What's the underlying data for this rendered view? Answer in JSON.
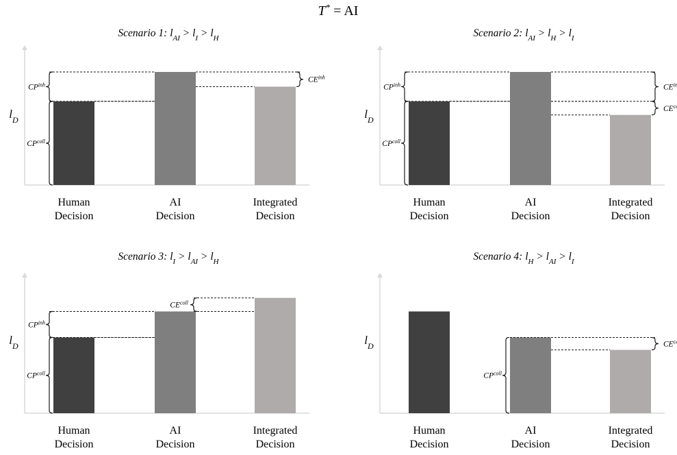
{
  "figure_title": {
    "base": "T",
    "sup": "*",
    "rest": " = AI"
  },
  "colors": {
    "human": "#404040",
    "ai": "#7f7f7f",
    "integrated": "#afabab",
    "axis": "#d9d9d9",
    "line": "#1a1a1a"
  },
  "chart_data": [
    {
      "type": "bar",
      "title_prefix": "Scenario 1: ",
      "title_terms": [
        {
          "b": "l",
          "s": "AI"
        },
        {
          "op": " > "
        },
        {
          "b": "l",
          "s": "I"
        },
        {
          "op": " > "
        },
        {
          "b": "l",
          "s": "H"
        }
      ],
      "ylabel": {
        "b": "l",
        "s": "D"
      },
      "categories": [
        [
          "Human",
          "Decision"
        ],
        [
          "AI",
          "Decision"
        ],
        [
          "Integrated",
          "Decision"
        ]
      ],
      "values": [
        0.74,
        1.0,
        0.87
      ],
      "ylim": [
        0,
        1.25
      ],
      "annotations": [
        {
          "kind": "left-brace",
          "from": 0,
          "to": 0.74,
          "label": "CP",
          "sup": "coll"
        },
        {
          "kind": "left-brace",
          "from": 0.74,
          "to": 1.0,
          "label": "CP",
          "sup": "inh"
        },
        {
          "kind": "right-brace",
          "from": 0.87,
          "to": 1.0,
          "label": "CE",
          "sup": "inh"
        }
      ]
    },
    {
      "type": "bar",
      "title_prefix": "Scenario 2: ",
      "title_terms": [
        {
          "b": "l",
          "s": "AI"
        },
        {
          "op": " > "
        },
        {
          "b": "l",
          "s": "H"
        },
        {
          "op": " > "
        },
        {
          "b": "l",
          "s": "I"
        }
      ],
      "ylabel": {
        "b": "l",
        "s": "D"
      },
      "categories": [
        [
          "Human",
          "Decision"
        ],
        [
          "AI",
          "Decision"
        ],
        [
          "Integrated",
          "Decision"
        ]
      ],
      "values": [
        0.74,
        1.0,
        0.62
      ],
      "ylim": [
        0,
        1.25
      ],
      "annotations": [
        {
          "kind": "left-brace",
          "from": 0,
          "to": 0.74,
          "label": "CP",
          "sup": "coll"
        },
        {
          "kind": "left-brace",
          "from": 0.74,
          "to": 1.0,
          "label": "CP",
          "sup": "inh"
        },
        {
          "kind": "right-brace",
          "from": 0.74,
          "to": 1.0,
          "label": "CE",
          "sup": "inh"
        },
        {
          "kind": "right-brace",
          "from": 0.62,
          "to": 0.74,
          "label": "CE",
          "sup": "coll"
        }
      ]
    },
    {
      "type": "bar",
      "title_prefix": "Scenario 3: ",
      "title_terms": [
        {
          "b": "l",
          "s": "I"
        },
        {
          "op": " > "
        },
        {
          "b": "l",
          "s": "AI"
        },
        {
          "op": " > "
        },
        {
          "b": "l",
          "s": "H"
        }
      ],
      "ylabel": {
        "b": "l",
        "s": "D"
      },
      "categories": [
        [
          "Human",
          "Decision"
        ],
        [
          "AI",
          "Decision"
        ],
        [
          "Integrated",
          "Decision"
        ]
      ],
      "values": [
        0.67,
        0.9,
        1.02
      ],
      "ylim": [
        0,
        1.25
      ],
      "annotations": [
        {
          "kind": "left-brace",
          "from": 0,
          "to": 0.67,
          "label": "CP",
          "sup": "coll"
        },
        {
          "kind": "left-brace",
          "from": 0.67,
          "to": 0.9,
          "label": "CP",
          "sup": "inh"
        },
        {
          "kind": "left-brace-top",
          "from": 0.9,
          "to": 1.02,
          "label": "CE",
          "sup": "coll"
        }
      ]
    },
    {
      "type": "bar",
      "title_prefix": "Scenario 4: ",
      "title_terms": [
        {
          "b": "l",
          "s": "H"
        },
        {
          "op": " > "
        },
        {
          "b": "l",
          "s": "AI"
        },
        {
          "op": " > "
        },
        {
          "b": "l",
          "s": "I"
        }
      ],
      "ylabel": {
        "b": "l",
        "s": "D"
      },
      "categories": [
        [
          "Human",
          "Decision"
        ],
        [
          "AI",
          "Decision"
        ],
        [
          "Integrated",
          "Decision"
        ]
      ],
      "values": [
        0.9,
        0.67,
        0.56
      ],
      "ylim": [
        0,
        1.25
      ],
      "annotations": [
        {
          "kind": "mid-brace",
          "from": 0,
          "to": 0.67,
          "label": "CP",
          "sup": "coll"
        },
        {
          "kind": "right-brace",
          "from": 0.56,
          "to": 0.67,
          "label": "CE",
          "sup": "coll"
        }
      ]
    }
  ]
}
